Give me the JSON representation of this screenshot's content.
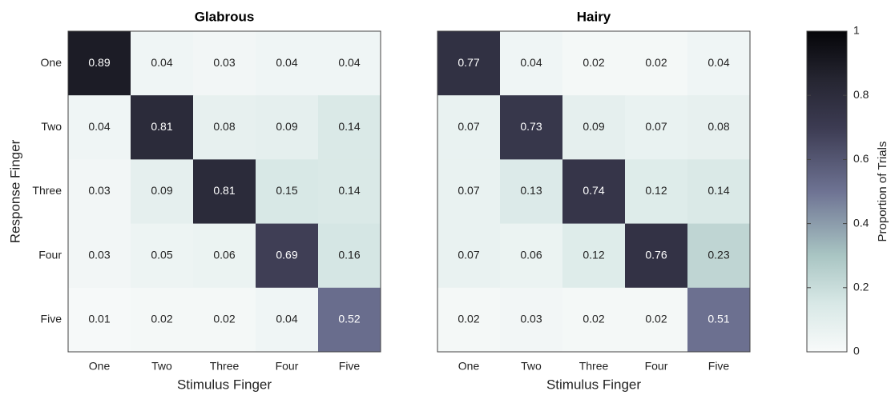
{
  "chart_data": [
    {
      "type": "heatmap",
      "title": "Glabrous",
      "x_label": "Stimulus Finger",
      "y_label": "Response Finger",
      "x_categories": [
        "One",
        "Two",
        "Three",
        "Four",
        "Five"
      ],
      "y_categories": [
        "One",
        "Two",
        "Three",
        "Four",
        "Five"
      ],
      "values": [
        [
          0.89,
          0.04,
          0.03,
          0.04,
          0.04
        ],
        [
          0.04,
          0.81,
          0.08,
          0.09,
          0.14
        ],
        [
          0.03,
          0.09,
          0.81,
          0.15,
          0.14
        ],
        [
          0.03,
          0.05,
          0.06,
          0.69,
          0.16
        ],
        [
          0.01,
          0.02,
          0.02,
          0.04,
          0.52
        ]
      ]
    },
    {
      "type": "heatmap",
      "title": "Hairy",
      "x_label": "Stimulus Finger",
      "x_categories": [
        "One",
        "Two",
        "Three",
        "Four",
        "Five"
      ],
      "values": [
        [
          0.77,
          0.04,
          0.02,
          0.02,
          0.04
        ],
        [
          0.07,
          0.73,
          0.09,
          0.07,
          0.08
        ],
        [
          0.07,
          0.13,
          0.74,
          0.12,
          0.14
        ],
        [
          0.07,
          0.06,
          0.12,
          0.76,
          0.23
        ],
        [
          0.02,
          0.03,
          0.02,
          0.02,
          0.51
        ]
      ],
      "colorbar": {
        "label": "Proportion of Trials",
        "lim": [
          0,
          1
        ],
        "ticks": [
          0,
          0.2,
          0.4,
          0.6,
          0.8,
          1
        ]
      }
    }
  ]
}
